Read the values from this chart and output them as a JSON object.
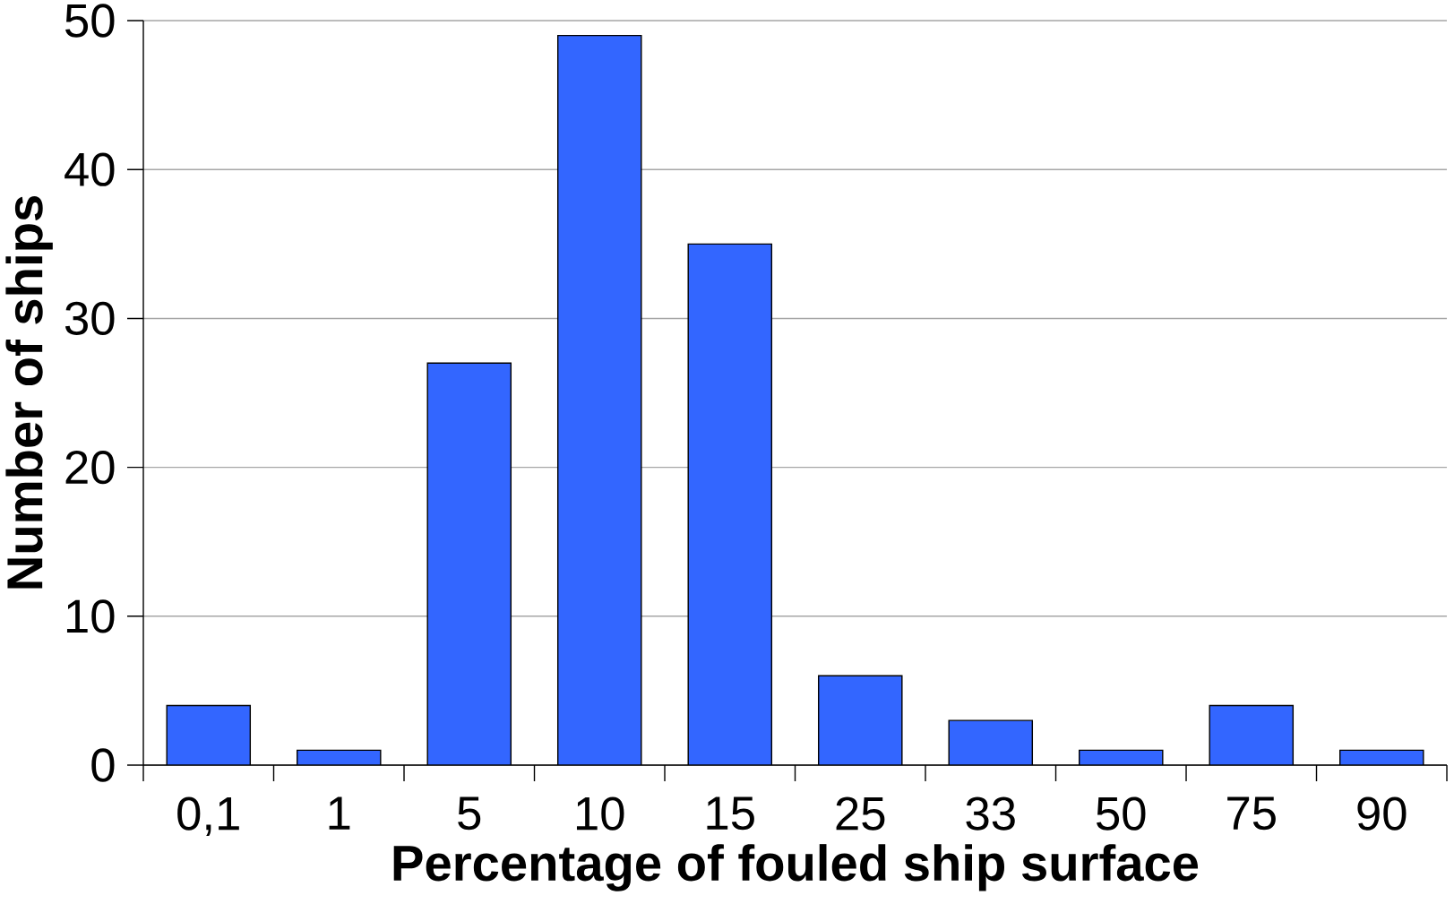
{
  "chart_data": {
    "type": "bar",
    "xlabel": "Percentage of fouled ship surface",
    "ylabel": "Number of ships",
    "categories": [
      "0,1",
      "1",
      "5",
      "10",
      "15",
      "25",
      "33",
      "50",
      "75",
      "90"
    ],
    "values": [
      4,
      1,
      27,
      49,
      35,
      6,
      3,
      1,
      4,
      1
    ],
    "color": "#3366ff",
    "ylim": [
      0,
      50
    ],
    "yticks": [
      0,
      10,
      20,
      30,
      40,
      50
    ],
    "grid": "y"
  }
}
